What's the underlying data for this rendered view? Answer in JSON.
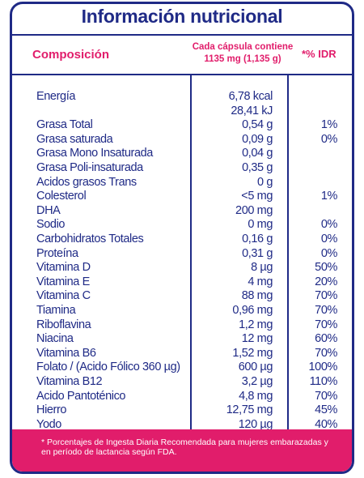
{
  "title": "Información nutricional",
  "header": {
    "composicion": "Composición",
    "cada_line1": "Cada cápsula contiene",
    "cada_line2": "1135 mg (1,135 g)",
    "idr": "*% IDR"
  },
  "rows": [
    {
      "n": "Energía",
      "a": "6,78 kcal",
      "p": ""
    },
    {
      "n": "",
      "a": "28,41 kJ",
      "p": ""
    },
    {
      "n": "Grasa Total",
      "a": "0,54 g",
      "p": "1%"
    },
    {
      "n": "Grasa saturada",
      "a": "0,09 g",
      "p": "0%"
    },
    {
      "n": "Grasa Mono Insaturada",
      "a": "0,04 g",
      "p": ""
    },
    {
      "n": "Grasa Poli-insaturada",
      "a": "0,35 g",
      "p": ""
    },
    {
      "n": "Acidos grasos Trans",
      "a": "0 g",
      "p": ""
    },
    {
      "n": "Colesterol",
      "a": "<5 mg",
      "p": "1%"
    },
    {
      "n": "DHA",
      "a": "200 mg",
      "p": ""
    },
    {
      "n": "Sodio",
      "a": "0 mg",
      "p": "0%"
    },
    {
      "n": "Carbohidratos Totales",
      "a": "0,16 g",
      "p": "0%"
    },
    {
      "n": "Proteína",
      "a": "0,31 g",
      "p": "0%"
    },
    {
      "n": "Vitamina D",
      "a": "8 µg",
      "p": "50%"
    },
    {
      "n": "Vitamina E",
      "a": "4 mg",
      "p": "20%"
    },
    {
      "n": "Vitamina C",
      "a": "88 mg",
      "p": "70%"
    },
    {
      "n": "Tiamina",
      "a": "0,96 mg",
      "p": "70%"
    },
    {
      "n": "Riboflavina",
      "a": "1,2 mg",
      "p": "70%"
    },
    {
      "n": "Niacina",
      "a": "12 mg",
      "p": "60%"
    },
    {
      "n": "Vitamina B6",
      "a": "1,52 mg",
      "p": "70%"
    },
    {
      "n": "Folato / (Acido Fólico 360 µg)",
      "a": "600 µg",
      "p": "100%"
    },
    {
      "n": "Vitamina B12",
      "a": "3,2 µg",
      "p": "110%"
    },
    {
      "n": "Acido Pantoténico",
      "a": "4,8 mg",
      "p": "70%"
    },
    {
      "n": "Hierro",
      "a": "12,75 mg",
      "p": "45%"
    },
    {
      "n": "Yodo",
      "a": "120 µg",
      "p": "40%"
    }
  ],
  "footnote_line1": "* Porcentajes de Ingesta Diaria Recomendada para mujeres embarazadas y",
  "footnote_line2": "en período de lactancia según FDA.",
  "colors": {
    "blue": "#1f2a86",
    "pink": "#e11d6b"
  }
}
